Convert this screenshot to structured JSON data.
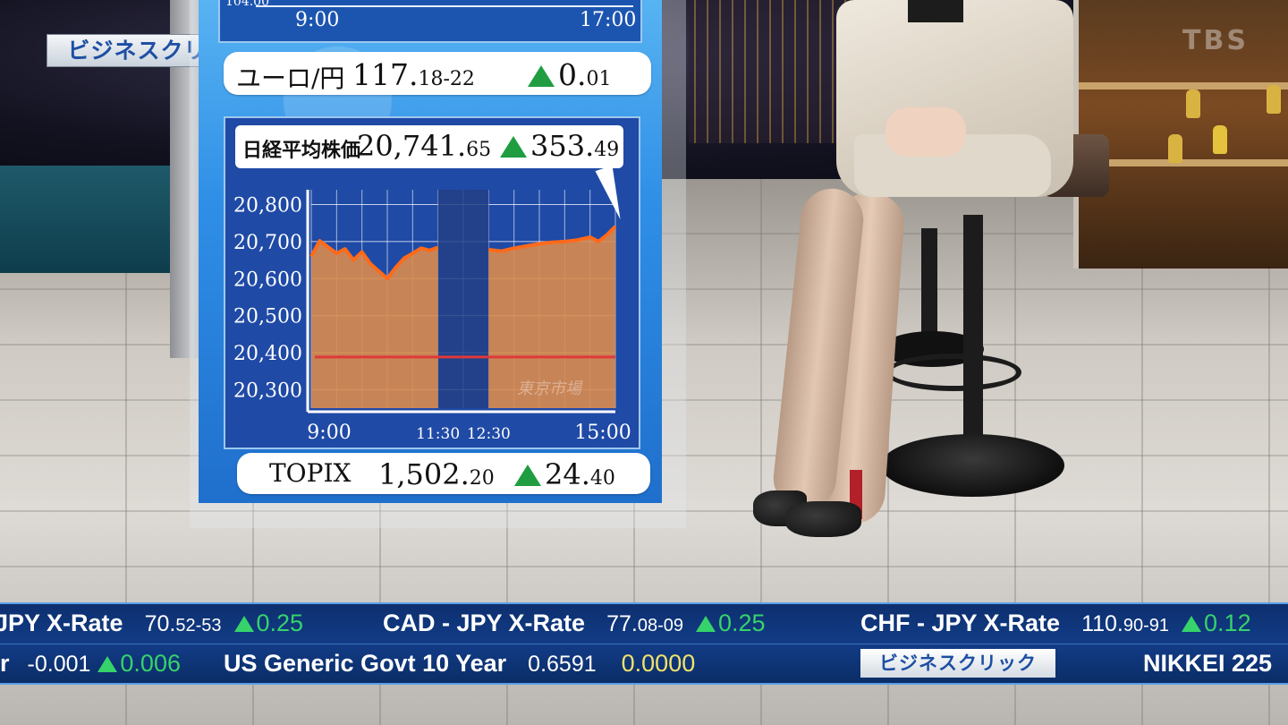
{
  "broadcast": {
    "program_logo": "ビジネスクリック",
    "channel_logo": "TBS"
  },
  "board": {
    "top_chart": {
      "x_start": "9:00",
      "x_end": "17:00",
      "partial_y_label": "104.00"
    },
    "euro_yen": {
      "label": "ユーロ/円",
      "value_main": "117.",
      "value_dec": "18-22",
      "change_main": "0.",
      "change_dec": "01",
      "direction": "up"
    },
    "nikkei": {
      "label": "日経平均株価",
      "value_main": "20,741.",
      "value_dec": "65",
      "change_main": "353.",
      "change_dec": "49",
      "direction": "up",
      "watermark": "東京市場"
    },
    "topix": {
      "label": "TOPIX",
      "value_main": "1,502.",
      "value_dec": "20",
      "change_main": "24.",
      "change_dec": "40",
      "direction": "up"
    }
  },
  "chart_data": {
    "type": "area",
    "title": "日経平均株価",
    "x_ticks": [
      "9:00",
      "11:30",
      "12:30",
      "15:00"
    ],
    "y_ticks": [
      "20,300",
      "20,400",
      "20,500",
      "20,600",
      "20,700",
      "20,800"
    ],
    "ylim": [
      20250,
      20840
    ],
    "lunch_break": [
      "11:30",
      "12:30"
    ],
    "previous_close": 20388,
    "series": [
      {
        "name": "morning",
        "x": [
          "9:00",
          "9:10",
          "9:20",
          "9:30",
          "9:40",
          "9:50",
          "10:00",
          "10:10",
          "10:20",
          "10:30",
          "10:40",
          "10:50",
          "11:00",
          "11:10",
          "11:20",
          "11:30"
        ],
        "values": [
          20660,
          20702,
          20685,
          20668,
          20680,
          20650,
          20672,
          20640,
          20620,
          20600,
          20630,
          20655,
          20668,
          20682,
          20676,
          20684
        ]
      },
      {
        "name": "afternoon",
        "x": [
          "12:30",
          "12:45",
          "13:00",
          "13:15",
          "13:30",
          "13:45",
          "14:00",
          "14:15",
          "14:30",
          "14:40",
          "14:50",
          "15:00"
        ],
        "values": [
          20678,
          20674,
          20682,
          20688,
          20694,
          20698,
          20700,
          20704,
          20712,
          20700,
          20718,
          20741
        ]
      }
    ],
    "colors": {
      "line": "#ff6a1a",
      "fill": "#d98b4f",
      "prev_close": "#e03838",
      "grid": "#ffffff",
      "break": "#233f85"
    }
  },
  "ticker": {
    "row1": [
      {
        "label": "JPY X-Rate",
        "value_main": "70.",
        "value_dec": "52-53",
        "change": "0.25",
        "direction": "up"
      },
      {
        "label": "CAD - JPY X-Rate",
        "value_main": "77.",
        "value_dec": "08-09",
        "change": "0.25",
        "direction": "up"
      },
      {
        "label": "CHF - JPY X-Rate",
        "value_main": "110.",
        "value_dec": "90-91",
        "change": "0.12",
        "direction": "up"
      }
    ],
    "row2": {
      "partial_label": "r",
      "partial_value": "-0.001",
      "partial_change": "0.006",
      "bond_label": "US Generic Govt 10 Year",
      "bond_value": "0.6591",
      "bond_change": "0.0000",
      "logo": "ビジネスクリック",
      "next_label": "NIKKEI 225"
    }
  }
}
